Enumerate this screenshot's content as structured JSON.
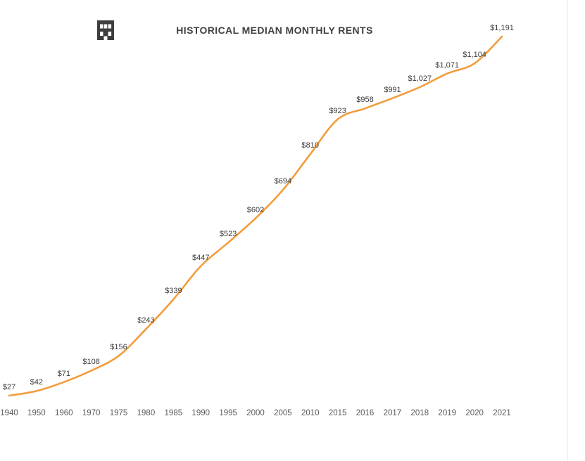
{
  "chart_data": {
    "type": "line",
    "title": "HISTORICAL MEDIAN MONTHLY RENTS",
    "categories": [
      "1940",
      "1950",
      "1960",
      "1970",
      "1975",
      "1980",
      "1985",
      "1990",
      "1995",
      "2000",
      "2005",
      "2010",
      "2015",
      "2016",
      "2017",
      "2018",
      "2019",
      "2020",
      "2021"
    ],
    "values": [
      27,
      42,
      71,
      108,
      156,
      243,
      339,
      447,
      523,
      602,
      694,
      810,
      923,
      958,
      991,
      1027,
      1071,
      1104,
      1191
    ],
    "point_labels": [
      "$27",
      "$42",
      "$71",
      "$108",
      "$156",
      "$243",
      "$339",
      "$447",
      "$523",
      "$602",
      "$694",
      "$810",
      "$923",
      "$958",
      "$991",
      "$1,027",
      "$1,071",
      "$1,104",
      "$1,191"
    ],
    "xlabel": "",
    "ylabel": "",
    "ylim": [
      27,
      1191
    ],
    "grid": false,
    "y_axis_visible": false,
    "legend_position": "none",
    "smoothed_line": true
  },
  "colors": {
    "line": "#F29C3B",
    "title_text": "#3F3F3F",
    "data_label_text": "#3C3C3C",
    "axis_label_text": "#595959",
    "icon": "#3D3D3D",
    "background": "#FFFFFF",
    "right_border": "#EBEBEB"
  },
  "icons": {
    "header_icon": "building-icon"
  }
}
